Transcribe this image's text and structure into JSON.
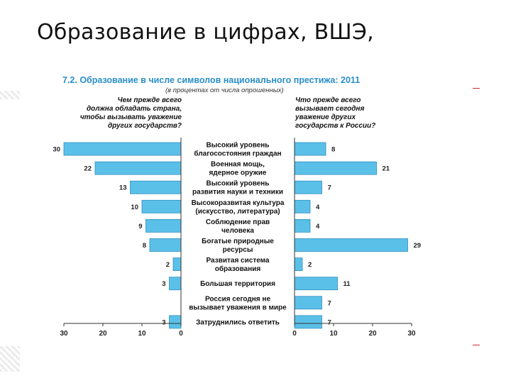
{
  "slide": {
    "title": "Образование в цифрах, ВШЭ,"
  },
  "chart_data": {
    "type": "bar",
    "title": "7.2. Образование в числе символов национального престижа: 2011",
    "subtitle": "(в процентах от числа опрошенных)",
    "left_header": [
      "Чем прежде всего",
      "должна обладать страна,",
      "чтобы вызывать уважение",
      "других государств?"
    ],
    "right_header": [
      "Что прежде всего",
      "вызывает сегодня",
      "уважение других",
      "государств к России?"
    ],
    "categories": [
      [
        "Высокий уровень",
        "благосостояния граждан"
      ],
      [
        "Военная мощь,",
        "ядерное оружие"
      ],
      [
        "Высокий уровень",
        "развития науки и техники"
      ],
      [
        "Высокоразвитая культура",
        "(искусство, литература)"
      ],
      [
        "Соблюдение прав",
        "человека"
      ],
      [
        "Богатые природные",
        "ресурсы"
      ],
      [
        "Развитая система",
        "образования"
      ],
      [
        "Большая территория"
      ],
      [
        "Россия сегодня не",
        "вызывает уважения в мире"
      ],
      [
        "Затруднились ответить"
      ]
    ],
    "series": [
      {
        "values": [
          30,
          22,
          13,
          10,
          9,
          8,
          2,
          3,
          null,
          3
        ]
      },
      {
        "values": [
          8,
          21,
          7,
          4,
          4,
          29,
          2,
          11,
          7,
          7
        ]
      }
    ],
    "xlim": [
      0,
      30
    ],
    "x_ticks": [
      "30",
      "20",
      "10",
      "0"
    ],
    "x_ticks_right": [
      "0",
      "10",
      "20",
      "30"
    ],
    "bar_color": "#5bc0e8",
    "bar_edge": "#2f8fc0",
    "title_color": "#2a8ec7",
    "grid": false
  }
}
